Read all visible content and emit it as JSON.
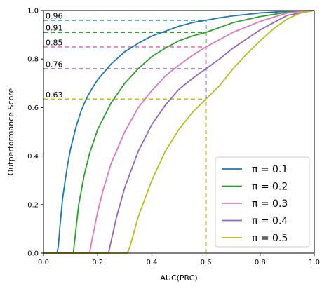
{
  "chart_data": {
    "type": "line",
    "title": "",
    "xlabel": "AUC(PRC)",
    "ylabel": "Outperformance Score",
    "xlim": [
      0,
      1
    ],
    "ylim": [
      0,
      1
    ],
    "x_ticks": [
      "0.0",
      "0.2",
      "0.4",
      "0.6",
      "0.8",
      "1.0"
    ],
    "y_ticks": [
      "0.0",
      "0.2",
      "0.4",
      "0.6",
      "0.8",
      "1.0"
    ],
    "grid": false,
    "legend_position": "bottom-right",
    "series": [
      {
        "name": "π = 0.1",
        "color": "#1f77b4",
        "x": [
          0.0,
          0.05,
          0.055,
          0.06,
          0.07,
          0.08,
          0.09,
          0.1,
          0.12,
          0.14,
          0.16,
          0.18,
          0.2,
          0.25,
          0.3,
          0.35,
          0.4,
          0.45,
          0.5,
          0.55,
          0.6,
          0.65,
          0.7,
          0.8,
          0.9,
          1.0
        ],
        "y": [
          0.0,
          0.0,
          0.03,
          0.1,
          0.22,
          0.3,
          0.37,
          0.43,
          0.52,
          0.59,
          0.64,
          0.68,
          0.715,
          0.78,
          0.83,
          0.865,
          0.895,
          0.915,
          0.935,
          0.95,
          0.96,
          0.97,
          0.978,
          0.99,
          0.997,
          1.0
        ]
      },
      {
        "name": "π = 0.2",
        "color": "#2ca02c",
        "x": [
          0.0,
          0.11,
          0.115,
          0.13,
          0.15,
          0.17,
          0.2,
          0.25,
          0.3,
          0.35,
          0.4,
          0.45,
          0.5,
          0.55,
          0.6,
          0.65,
          0.7,
          0.8,
          0.9,
          1.0
        ],
        "y": [
          0.0,
          0.0,
          0.05,
          0.2,
          0.32,
          0.41,
          0.51,
          0.62,
          0.7,
          0.76,
          0.81,
          0.845,
          0.875,
          0.895,
          0.91,
          0.93,
          0.95,
          0.975,
          0.993,
          1.0
        ]
      },
      {
        "name": "π = 0.3",
        "color": "#e377c2",
        "x": [
          0.0,
          0.17,
          0.18,
          0.2,
          0.22,
          0.25,
          0.3,
          0.35,
          0.4,
          0.45,
          0.5,
          0.55,
          0.6,
          0.65,
          0.7,
          0.8,
          0.9,
          1.0
        ],
        "y": [
          0.0,
          0.0,
          0.06,
          0.17,
          0.26,
          0.37,
          0.5,
          0.6,
          0.67,
          0.73,
          0.775,
          0.815,
          0.85,
          0.88,
          0.91,
          0.955,
          0.99,
          1.0
        ]
      },
      {
        "name": "π = 0.4",
        "color": "#9467bd",
        "x": [
          0.0,
          0.24,
          0.25,
          0.27,
          0.3,
          0.35,
          0.4,
          0.45,
          0.5,
          0.55,
          0.6,
          0.65,
          0.7,
          0.8,
          0.9,
          1.0
        ],
        "y": [
          0.0,
          0.0,
          0.05,
          0.15,
          0.27,
          0.42,
          0.53,
          0.61,
          0.675,
          0.72,
          0.76,
          0.8,
          0.845,
          0.92,
          0.98,
          1.0
        ]
      },
      {
        "name": "π = 0.5",
        "color": "#bcbd22",
        "x": [
          0.0,
          0.31,
          0.32,
          0.35,
          0.4,
          0.45,
          0.5,
          0.55,
          0.6,
          0.65,
          0.7,
          0.75,
          0.8,
          0.85,
          0.9,
          0.95,
          1.0
        ],
        "y": [
          0.0,
          0.0,
          0.03,
          0.15,
          0.3,
          0.42,
          0.51,
          0.58,
          0.635,
          0.69,
          0.76,
          0.82,
          0.875,
          0.925,
          0.965,
          0.99,
          1.0
        ]
      }
    ],
    "reference_x": 0.6,
    "annotations": [
      {
        "label": "0.96",
        "y": 0.96,
        "color": "#1f77b4"
      },
      {
        "label": "0.91",
        "y": 0.91,
        "color": "#2ca02c"
      },
      {
        "label": "0.85",
        "y": 0.85,
        "color": "#e377c2"
      },
      {
        "label": "0.76",
        "y": 0.76,
        "color": "#9467bd"
      },
      {
        "label": "0.63",
        "y": 0.635,
        "color": "#bcbd22"
      }
    ]
  }
}
